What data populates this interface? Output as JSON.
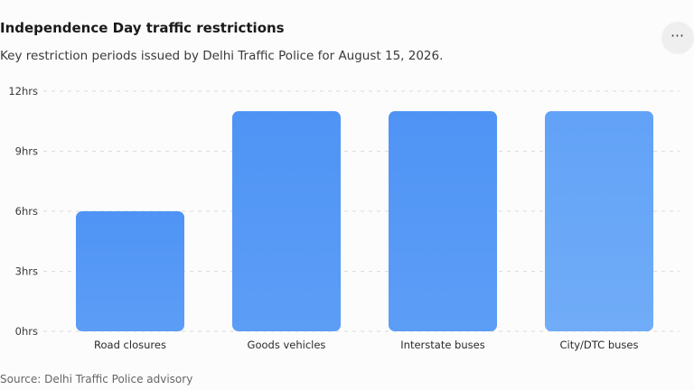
{
  "header": {
    "title": "Independence Day traffic restrictions",
    "subtitle": "Key restriction periods issued by Delhi Traffic Police for August 15, 2026.",
    "more_label": "⋯"
  },
  "footer": {
    "source": "Source: Delhi Traffic Police advisory"
  },
  "colors": {
    "bar_top": "#4f94f5",
    "bar_bottom": "#5c9df6",
    "bar_last_top": "#62a2f7",
    "bar_last_bottom": "#70acf7",
    "grid": "#dcdcdc"
  },
  "chart_data": {
    "type": "bar",
    "categories": [
      "Road closures",
      "Goods vehicles",
      "Interstate buses",
      "City/DTC buses"
    ],
    "values": [
      6,
      11,
      11,
      11
    ],
    "yticks": [
      "0hrs",
      "3hrs",
      "6hrs",
      "9hrs",
      "12hrs"
    ],
    "ylim": [
      0,
      12
    ],
    "grid": true,
    "legend": "none"
  }
}
